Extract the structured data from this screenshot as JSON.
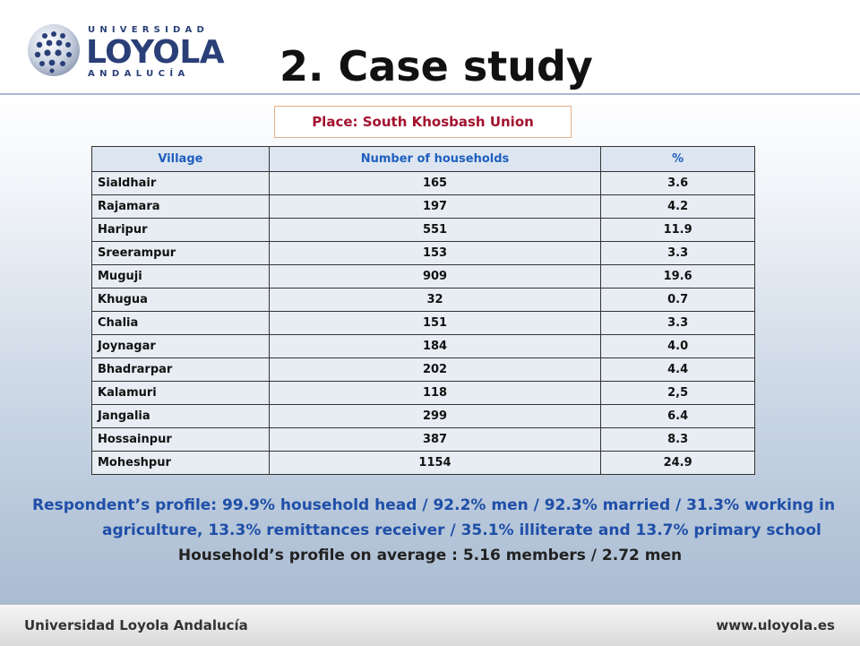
{
  "header": {
    "logo": {
      "top_text": "UNIVERSIDAD",
      "main_text": "LOYOLA",
      "bottom_text": "ANDALUCÍA"
    },
    "title": "2. Case study"
  },
  "place_box": "Place: South Khosbash   Union",
  "table": {
    "headers": [
      "Village",
      "Number of households",
      "%"
    ],
    "rows": [
      [
        "Sialdhair",
        "165",
        "3.6"
      ],
      [
        "Rajamara",
        "197",
        "4.2"
      ],
      [
        "Haripur",
        "551",
        "11.9"
      ],
      [
        "Sreerampur",
        "153",
        "3.3"
      ],
      [
        "Muguji",
        "909",
        "19.6"
      ],
      [
        "Khugua",
        "32",
        "0.7"
      ],
      [
        "Chalia",
        "151",
        "3.3"
      ],
      [
        "Joynagar",
        "184",
        "4.0"
      ],
      [
        "Bhadrarpar",
        "202",
        "4.4"
      ],
      [
        "Kalamuri",
        "118",
        "2,5"
      ],
      [
        "Jangalia",
        "299",
        "6.4"
      ],
      [
        "Hossainpur",
        "387",
        "8.3"
      ],
      [
        "Moheshpur",
        "1154",
        "24.9"
      ]
    ]
  },
  "respondent_profile": {
    "line1": "Respondent’s profile: 99.9% household head / 92.2% men / 92.3% married / 31.3% working in",
    "line2": "agriculture, 13.3% remittances receiver /  35.1% illiterate and 13.7% primary school"
  },
  "household_profile": "Household’s profile on average : 5.16 members / 2.72 men",
  "footer": {
    "left": "Universidad Loyola Andalucía",
    "right": "www.uloyola.es"
  },
  "colors": {
    "brand_blue": "#2a3f77",
    "header_text_blue": "#1f5fbf",
    "place_red": "#a3122f"
  }
}
